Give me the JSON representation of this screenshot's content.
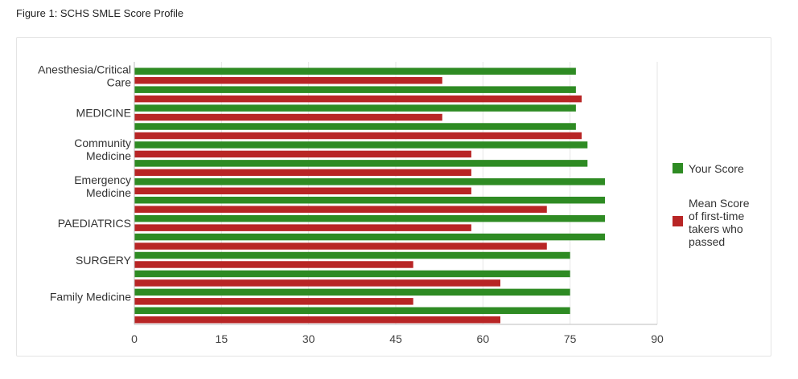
{
  "figure_title": "Figure 1: SCHS SMLE Score Profile",
  "chart_data": {
    "type": "bar",
    "orientation": "horizontal",
    "categories": [
      "Anesthesia/Critical Care",
      "MEDICINE",
      "Community Medicine",
      "Emergency Medicine",
      "PAEDIATRICS",
      "SURGERY",
      "Family Medicine"
    ],
    "category_labels": [
      [
        "Anesthesia/Critical",
        "Care"
      ],
      [
        "MEDICINE"
      ],
      [
        "Community",
        "Medicine"
      ],
      [
        "Emergency",
        "Medicine"
      ],
      [
        "PAEDIATRICS"
      ],
      [
        "SURGERY"
      ],
      [
        "Family Medicine"
      ]
    ],
    "bar_rows": [
      {
        "series": 0,
        "value": 76
      },
      {
        "series": 1,
        "value": 53
      },
      {
        "series": 0,
        "value": 76
      },
      {
        "series": 1,
        "value": 77
      },
      {
        "series": 0,
        "value": 76
      },
      {
        "series": 1,
        "value": 53
      },
      {
        "series": 0,
        "value": 76
      },
      {
        "series": 1,
        "value": 77
      },
      {
        "series": 0,
        "value": 78
      },
      {
        "series": 1,
        "value": 58
      },
      {
        "series": 0,
        "value": 78
      },
      {
        "series": 1,
        "value": 58
      },
      {
        "series": 0,
        "value": 81
      },
      {
        "series": 1,
        "value": 58
      },
      {
        "series": 0,
        "value": 81
      },
      {
        "series": 1,
        "value": 71
      },
      {
        "series": 0,
        "value": 81
      },
      {
        "series": 1,
        "value": 58
      },
      {
        "series": 0,
        "value": 81
      },
      {
        "series": 1,
        "value": 71
      },
      {
        "series": 0,
        "value": 75
      },
      {
        "series": 1,
        "value": 48
      },
      {
        "series": 0,
        "value": 75
      },
      {
        "series": 1,
        "value": 63
      },
      {
        "series": 0,
        "value": 75
      },
      {
        "series": 1,
        "value": 48
      },
      {
        "series": 0,
        "value": 75
      },
      {
        "series": 1,
        "value": 63
      }
    ],
    "series": [
      {
        "name": "Your Score",
        "legend_lines": [
          "Your Score"
        ],
        "color": "#2e8b23"
      },
      {
        "name": "Mean Score of first-time takers who passed",
        "legend_lines": [
          "Mean Score",
          "of first-time",
          "takers who",
          "passed"
        ],
        "color": "#b82525"
      }
    ],
    "x_ticks": [
      0,
      15,
      30,
      45,
      60,
      75,
      90
    ],
    "xlim": [
      0,
      90
    ],
    "grid": "vertical",
    "legend_position": "right"
  }
}
